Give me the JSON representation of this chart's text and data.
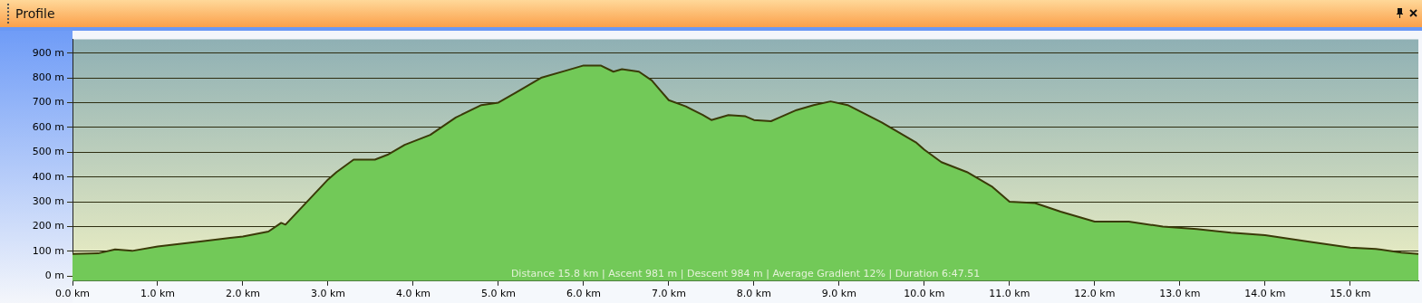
{
  "chart_data": {
    "type": "area",
    "title": "Profile",
    "x": [
      0,
      0.3,
      0.5,
      0.7,
      1.0,
      1.5,
      2.0,
      2.3,
      2.45,
      2.5,
      3.0,
      3.1,
      3.3,
      3.55,
      3.7,
      3.9,
      4.2,
      4.5,
      4.8,
      5.0,
      5.2,
      5.5,
      5.8,
      6.0,
      6.2,
      6.35,
      6.45,
      6.65,
      6.8,
      6.9,
      7.0,
      7.2,
      7.4,
      7.5,
      7.7,
      7.9,
      8.0,
      8.2,
      8.3,
      8.5,
      8.7,
      8.9,
      9.1,
      9.5,
      9.9,
      10.0,
      10.2,
      10.5,
      10.8,
      11.0,
      11.3,
      11.6,
      12.0,
      12.4,
      12.8,
      13.2,
      13.6,
      14.0,
      14.5,
      15.0,
      15.3,
      15.6,
      15.8
    ],
    "series": [
      {
        "color": "#72c958",
        "values": [
          90,
          92,
          108,
          102,
          120,
          140,
          160,
          180,
          215,
          208,
          390,
          420,
          470,
          470,
          490,
          530,
          570,
          640,
          690,
          700,
          740,
          800,
          830,
          850,
          850,
          825,
          835,
          825,
          790,
          750,
          710,
          685,
          650,
          630,
          650,
          645,
          630,
          625,
          640,
          670,
          690,
          705,
          690,
          620,
          540,
          510,
          460,
          420,
          360,
          300,
          295,
          260,
          220,
          220,
          200,
          190,
          175,
          165,
          140,
          115,
          110,
          95,
          90
        ]
      }
    ],
    "xlim": [
      0,
      15.8
    ],
    "xticks": [
      {
        "value": 0,
        "label": "0.0 km"
      },
      {
        "value": 1,
        "label": "1.0 km"
      },
      {
        "value": 2,
        "label": "2.0 km"
      },
      {
        "value": 3,
        "label": "3.0 km"
      },
      {
        "value": 4,
        "label": "4.0 km"
      },
      {
        "value": 5,
        "label": "5.0 km"
      },
      {
        "value": 6,
        "label": "6.0 km"
      },
      {
        "value": 7,
        "label": "7.0 km"
      },
      {
        "value": 8,
        "label": "8.0 km"
      },
      {
        "value": 9,
        "label": "9.0 km"
      },
      {
        "value": 10,
        "label": "10.0 km"
      },
      {
        "value": 11,
        "label": "11.0 km"
      },
      {
        "value": 12,
        "label": "12.0 km"
      },
      {
        "value": 13,
        "label": "13.0 km"
      },
      {
        "value": 14,
        "label": "14.0 km"
      },
      {
        "value": 15,
        "label": "15.0 km"
      }
    ],
    "ylim": [
      -20,
      955
    ],
    "yticks": [
      {
        "value": 0,
        "label": "0 m"
      },
      {
        "value": 100,
        "label": "100 m"
      },
      {
        "value": 200,
        "label": "200 m"
      },
      {
        "value": 300,
        "label": "300 m"
      },
      {
        "value": 400,
        "label": "400 m"
      },
      {
        "value": 500,
        "label": "500 m"
      },
      {
        "value": 600,
        "label": "600 m"
      },
      {
        "value": 700,
        "label": "700 m"
      },
      {
        "value": 800,
        "label": "800 m"
      },
      {
        "value": 900,
        "label": "900 m"
      }
    ],
    "grid": "y",
    "legend": false,
    "line_style": "solid",
    "marker": "none",
    "annotations": [
      "Distance 15.8 km | Ascent 981 m | Descent 984 m | Average Gradient 12% | Duration 6:47.51"
    ]
  }
}
